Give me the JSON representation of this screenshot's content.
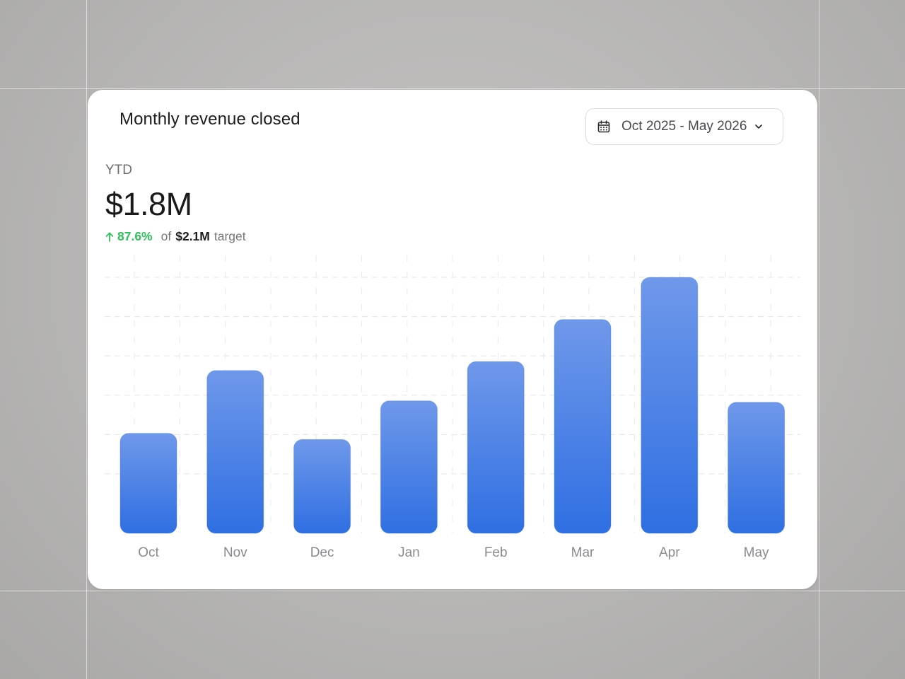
{
  "card": {
    "title": "Monthly revenue closed"
  },
  "date_range": {
    "label": "Oct 2025 - May 2026",
    "icon": "calendar-icon"
  },
  "summary": {
    "label": "YTD",
    "value": "$1.8M",
    "change_pct": "87.6%",
    "of_text": "of",
    "target_value": "$2.1M",
    "target_text": "target",
    "change_color": "#2ec05a"
  },
  "chart_data": {
    "type": "bar",
    "categories": [
      "Oct",
      "Nov",
      "Dec",
      "Jan",
      "Feb",
      "Mar",
      "Apr",
      "May"
    ],
    "values": [
      145,
      236,
      136,
      192,
      249,
      310,
      371,
      190
    ],
    "ylim": [
      0,
      400
    ],
    "grid": true,
    "bar_color": "#4a82e8"
  }
}
